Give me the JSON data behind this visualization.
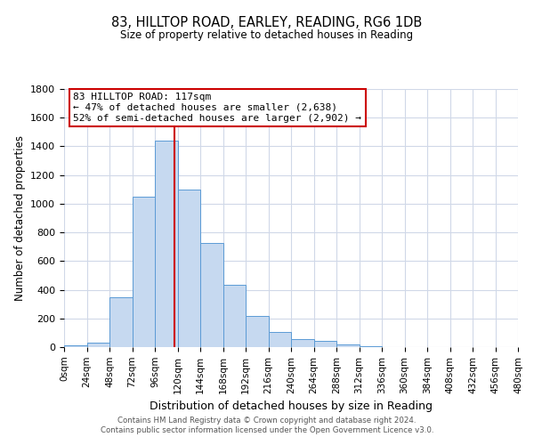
{
  "title": "83, HILLTOP ROAD, EARLEY, READING, RG6 1DB",
  "subtitle": "Size of property relative to detached houses in Reading",
  "xlabel": "Distribution of detached houses by size in Reading",
  "ylabel": "Number of detached properties",
  "bin_edges": [
    0,
    24,
    48,
    72,
    96,
    120,
    144,
    168,
    192,
    216,
    240,
    264,
    288,
    312,
    336,
    360,
    384,
    408,
    432,
    456,
    480
  ],
  "bar_heights": [
    15,
    30,
    350,
    1050,
    1440,
    1100,
    725,
    435,
    220,
    105,
    55,
    45,
    20,
    5,
    2,
    1,
    0,
    0,
    0,
    0
  ],
  "bar_color": "#c6d9f0",
  "bar_edge_color": "#5b9bd5",
  "property_size": 117,
  "red_line_color": "#cc0000",
  "annotation_title": "83 HILLTOP ROAD: 117sqm",
  "annotation_line1": "← 47% of detached houses are smaller (2,638)",
  "annotation_line2": "52% of semi-detached houses are larger (2,902) →",
  "annotation_box_edge": "#cc0000",
  "ylim": [
    0,
    1800
  ],
  "yticks": [
    0,
    200,
    400,
    600,
    800,
    1000,
    1200,
    1400,
    1600,
    1800
  ],
  "footer_line1": "Contains HM Land Registry data © Crown copyright and database right 2024.",
  "footer_line2": "Contains public sector information licensed under the Open Government Licence v3.0.",
  "background_color": "#ffffff",
  "grid_color": "#d0d8e8"
}
